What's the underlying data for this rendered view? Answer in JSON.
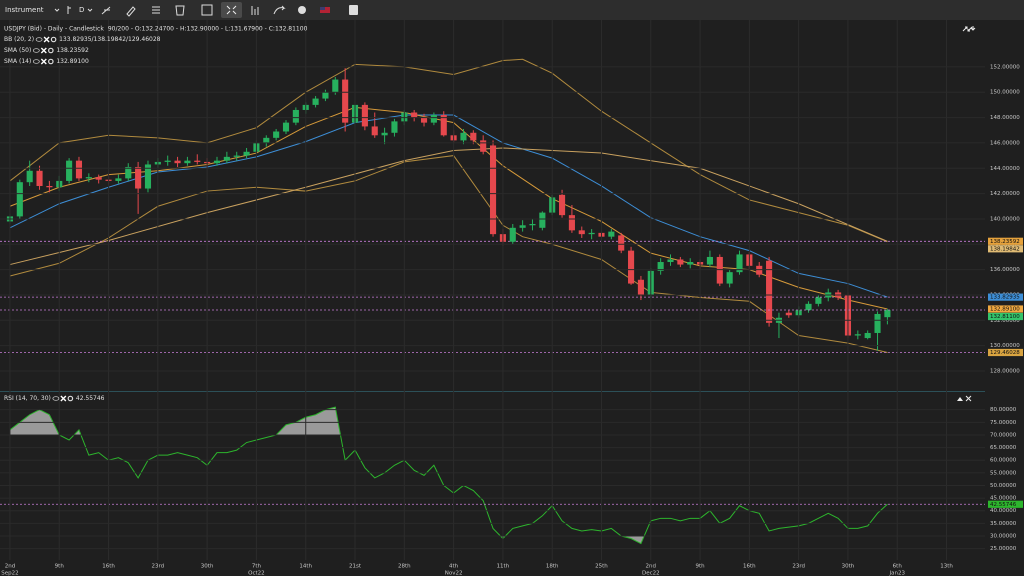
{
  "toolbar": {
    "instrument": "Instrument",
    "interval": "D"
  },
  "chart_data": {
    "type": "candlestick",
    "title": "USDJPY (Bid) - Daily - Candlestick",
    "ohlc_text": "90/200 - O:132.24700 - H:132.90000 - L:131.67900 - C:132.81100",
    "up_color": "#27b05e",
    "down_color": "#e5484d",
    "close_tag": "132.81100",
    "close_tag_color": "#33c46b",
    "candles": [
      [
        139.8,
        140.4,
        139.6,
        140.2
      ],
      [
        140.2,
        143.1,
        140.0,
        142.9
      ],
      [
        142.9,
        144.6,
        142.6,
        143.8
      ],
      [
        143.8,
        144.2,
        142.3,
        142.6
      ],
      [
        142.6,
        143.0,
        142.1,
        142.5
      ],
      [
        142.5,
        143.4,
        142.2,
        143.0
      ],
      [
        143.0,
        144.8,
        142.8,
        144.6
      ],
      [
        144.6,
        144.9,
        143.0,
        143.2
      ],
      [
        143.2,
        143.6,
        142.9,
        143.3
      ],
      [
        143.3,
        143.5,
        142.8,
        143.1
      ],
      [
        143.1,
        143.6,
        142.7,
        143.0
      ],
      [
        143.0,
        143.5,
        142.8,
        143.2
      ],
      [
        143.2,
        144.4,
        143.0,
        144.1
      ],
      [
        144.1,
        144.5,
        140.4,
        142.4
      ],
      [
        142.4,
        144.6,
        142.1,
        144.3
      ],
      [
        144.3,
        144.8,
        144.0,
        144.5
      ],
      [
        144.5,
        145.0,
        144.2,
        144.6
      ],
      [
        144.6,
        144.9,
        144.1,
        144.4
      ],
      [
        144.4,
        144.9,
        144.2,
        144.6
      ],
      [
        144.6,
        145.1,
        144.3,
        144.5
      ],
      [
        144.5,
        144.8,
        144.0,
        144.4
      ],
      [
        144.4,
        144.9,
        144.2,
        144.6
      ],
      [
        144.6,
        145.3,
        144.4,
        144.9
      ],
      [
        144.9,
        145.3,
        144.6,
        145.0
      ],
      [
        145.0,
        145.6,
        144.8,
        145.3
      ],
      [
        145.3,
        146.2,
        145.1,
        146.0
      ],
      [
        146.0,
        146.6,
        145.7,
        146.4
      ],
      [
        146.4,
        147.1,
        146.2,
        146.9
      ],
      [
        146.9,
        147.8,
        146.7,
        147.6
      ],
      [
        147.6,
        148.8,
        147.4,
        148.6
      ],
      [
        148.6,
        149.2,
        148.3,
        149.0
      ],
      [
        149.0,
        149.7,
        148.8,
        149.5
      ],
      [
        149.5,
        150.2,
        149.3,
        150.0
      ],
      [
        150.0,
        151.2,
        149.8,
        151.0
      ],
      [
        151.0,
        151.9,
        146.9,
        147.6
      ],
      [
        147.6,
        149.3,
        147.3,
        149.0
      ],
      [
        149.0,
        149.2,
        147.0,
        147.3
      ],
      [
        147.3,
        148.4,
        146.4,
        146.6
      ],
      [
        146.6,
        147.2,
        145.9,
        146.8
      ],
      [
        146.8,
        147.9,
        146.5,
        147.7
      ],
      [
        147.7,
        148.6,
        147.4,
        148.4
      ],
      [
        148.4,
        148.6,
        147.7,
        148.0
      ],
      [
        148.0,
        148.3,
        147.3,
        147.6
      ],
      [
        147.6,
        148.4,
        147.4,
        148.2
      ],
      [
        148.2,
        148.5,
        146.5,
        146.6
      ],
      [
        146.6,
        147.0,
        146.0,
        146.2
      ],
      [
        146.2,
        147.1,
        145.9,
        146.8
      ],
      [
        146.8,
        147.0,
        145.9,
        146.2
      ],
      [
        146.2,
        146.6,
        145.1,
        145.3
      ],
      [
        145.8,
        146.2,
        138.6,
        138.8
      ],
      [
        138.8,
        139.2,
        137.9,
        138.2
      ],
      [
        138.2,
        139.6,
        138.0,
        139.3
      ],
      [
        139.3,
        139.9,
        139.0,
        139.5
      ],
      [
        139.5,
        140.0,
        139.1,
        139.6
      ],
      [
        139.3,
        140.6,
        139.1,
        140.5
      ],
      [
        140.5,
        141.9,
        140.3,
        141.7
      ],
      [
        141.9,
        142.3,
        140.1,
        140.3
      ],
      [
        140.3,
        141.1,
        138.9,
        139.1
      ],
      [
        139.1,
        139.4,
        138.5,
        138.8
      ],
      [
        138.8,
        139.2,
        138.4,
        138.9
      ],
      [
        138.9,
        139.1,
        138.4,
        138.6
      ],
      [
        138.6,
        139.2,
        138.4,
        139.0
      ],
      [
        138.7,
        138.9,
        137.3,
        137.5
      ],
      [
        137.5,
        137.8,
        134.8,
        134.9
      ],
      [
        135.2,
        135.5,
        133.6,
        134.0
      ],
      [
        134.0,
        136.1,
        133.8,
        135.9
      ],
      [
        135.9,
        136.9,
        135.6,
        136.6
      ],
      [
        136.6,
        137.2,
        136.3,
        136.8
      ],
      [
        136.8,
        137.0,
        136.2,
        136.4
      ],
      [
        136.4,
        136.9,
        136.1,
        136.6
      ],
      [
        136.6,
        136.8,
        136.0,
        136.4
      ],
      [
        136.4,
        137.5,
        136.2,
        137.0
      ],
      [
        137.0,
        137.2,
        134.7,
        134.9
      ],
      [
        134.9,
        136.0,
        134.6,
        135.8
      ],
      [
        135.8,
        137.5,
        135.6,
        137.2
      ],
      [
        137.2,
        137.4,
        136.0,
        136.3
      ],
      [
        136.3,
        136.6,
        135.4,
        135.6
      ],
      [
        136.7,
        137.0,
        131.5,
        131.8
      ],
      [
        131.8,
        132.6,
        130.6,
        132.2
      ],
      [
        132.6,
        132.8,
        132.2,
        132.4
      ],
      [
        132.4,
        133.1,
        132.2,
        132.8
      ],
      [
        132.8,
        133.5,
        132.6,
        133.3
      ],
      [
        133.3,
        134.0,
        133.1,
        133.8
      ],
      [
        133.8,
        134.5,
        133.5,
        134.2
      ],
      [
        134.2,
        134.4,
        133.6,
        133.8
      ],
      [
        134.0,
        134.2,
        130.6,
        130.8
      ],
      [
        130.8,
        131.2,
        130.5,
        130.9
      ],
      [
        130.6,
        131.2,
        130.5,
        131.0
      ],
      [
        131.0,
        132.7,
        129.6,
        132.5
      ],
      [
        132.247,
        132.9,
        131.679,
        132.811
      ]
    ],
    "xlim": [
      -1.01,
      98.9
    ],
    "xticks": [
      {
        "value": 0,
        "label": "2nd"
      },
      {
        "value": 5,
        "label": "9th"
      },
      {
        "value": 10,
        "label": "16th"
      },
      {
        "value": 15,
        "label": "23rd"
      },
      {
        "value": 20,
        "label": "30th"
      },
      {
        "value": 25,
        "label": "7th"
      },
      {
        "value": 30,
        "label": "14th"
      },
      {
        "value": 35,
        "label": "21st"
      },
      {
        "value": 40,
        "label": "28th"
      },
      {
        "value": 45,
        "label": "4th"
      },
      {
        "value": 50,
        "label": "11th"
      },
      {
        "value": 55,
        "label": "18th"
      },
      {
        "value": 60,
        "label": "25th"
      },
      {
        "value": 65,
        "label": "2nd"
      },
      {
        "value": 70,
        "label": "9th"
      },
      {
        "value": 75,
        "label": "16th"
      },
      {
        "value": 80,
        "label": "23rd"
      },
      {
        "value": 85,
        "label": "30th"
      },
      {
        "value": 90,
        "label": "6th"
      },
      {
        "value": 95,
        "label": "13th"
      }
    ],
    "months": [
      {
        "value": 0,
        "label": "Sep22"
      },
      {
        "value": 25,
        "label": "Oct22"
      },
      {
        "value": 45,
        "label": "Nov22"
      },
      {
        "value": 65,
        "label": "Dec22"
      },
      {
        "value": 90,
        "label": "Jan23"
      }
    ],
    "ylim": [
      126.5,
      155.7
    ],
    "yticks": [
      {
        "value": 128,
        "label": "128.00000"
      },
      {
        "value": 130,
        "label": "130.00000"
      },
      {
        "value": 132,
        "label": "132.00000"
      },
      {
        "value": 134,
        "label": "134.00000"
      },
      {
        "value": 136,
        "label": "136.00000"
      },
      {
        "value": 138,
        "label": "138.00000"
      },
      {
        "value": 140,
        "label": "140.00000"
      },
      {
        "value": 142,
        "label": "142.00000"
      },
      {
        "value": 144,
        "label": "144.00000"
      },
      {
        "value": 146,
        "label": "146.00000"
      },
      {
        "value": 148,
        "label": "148.00000"
      },
      {
        "value": 150,
        "label": "150.00000"
      },
      {
        "value": 152,
        "label": "152.00000"
      }
    ],
    "studies": [
      {
        "name": "BB (20, 2)",
        "legend_value": "133.82935/138.19842/129.46028",
        "lines": [
          {
            "color": "#3d8ed6",
            "guide": true,
            "tag_label": "133.82935",
            "tag_color": "#3d8ed6",
            "x": [
              0,
              5,
              10,
              15,
              20,
              25,
              30,
              35,
              40,
              45,
              50,
              55,
              60,
              65,
              70,
              75,
              80,
              85,
              89
            ],
            "values": [
              139.3,
              141.2,
              142.5,
              143.7,
              144.1,
              144.9,
              146.1,
              147.6,
              148.2,
              148.2,
              146,
              144.8,
              142.6,
              140.1,
              138.6,
              137.5,
              135.7,
              134.9,
              133.82935
            ]
          },
          {
            "color": "#b08a3e",
            "guide": false,
            "tag_label": "138.19842",
            "tag_color": "#e0bb74",
            "x": [
              0,
              5,
              10,
              15,
              20,
              25,
              30,
              35,
              40,
              45,
              50,
              52,
              55,
              60,
              65,
              70,
              75,
              80,
              85,
              89
            ],
            "values": [
              143,
              146,
              146.6,
              146.4,
              146,
              147.2,
              150,
              152.2,
              152,
              151.4,
              152.5,
              152.6,
              151.5,
              148.5,
              146,
              143.5,
              141.5,
              140.5,
              139.5,
              138.19842
            ]
          },
          {
            "color": "#b08a3e",
            "guide": true,
            "tag_label": "129.46028",
            "tag_color": "#d9a441",
            "x": [
              0,
              5,
              10,
              15,
              20,
              25,
              30,
              35,
              40,
              45,
              50,
              52,
              55,
              60,
              65,
              70,
              75,
              80,
              85,
              89
            ],
            "values": [
              135.5,
              136.5,
              138.5,
              141,
              142.2,
              142.5,
              142.2,
              143,
              144.5,
              145,
              139.5,
              138.6,
              138,
              136.8,
              134.2,
              133.8,
              133.5,
              130.8,
              130.2,
              129.46028
            ]
          }
        ]
      },
      {
        "name": "SMA (50)",
        "legend_value": "138.23592",
        "lines": [
          {
            "color": "#c9a15f",
            "guide": true,
            "tag_label": "138.23592",
            "tag_color": "#e6a23c",
            "x": [
              0,
              10,
              20,
              30,
              40,
              45,
              50,
              60,
              70,
              80,
              89
            ],
            "values": [
              136.4,
              138.3,
              140.5,
              142.5,
              144.6,
              145.4,
              145.6,
              145.2,
              144,
              141.2,
              138.23592
            ]
          }
        ]
      },
      {
        "name": "SMA (14)",
        "legend_value": "132.89100",
        "lines": [
          {
            "color": "#d69a3a",
            "guide": false,
            "tag_label": "132.89100",
            "tag_color": "#f0a840",
            "x": [
              0,
              5,
              10,
              15,
              20,
              25,
              30,
              35,
              40,
              45,
              50,
              55,
              60,
              65,
              70,
              75,
              80,
              85,
              89
            ],
            "values": [
              141,
              142.5,
              143.5,
              143.8,
              144.3,
              145.2,
              147.3,
              148.8,
              148.4,
              147.6,
              144.2,
              141.6,
              139.8,
              137.3,
              136.3,
              136,
              134.6,
              133.6,
              132.891
            ]
          }
        ]
      }
    ],
    "rsi": {
      "name": "RSI (14, 70, 30)",
      "legend_value": "42.55746",
      "tag_label": "42.55746",
      "color": "#2db52d",
      "fill": "#9a9a9a",
      "level_color": "#cfcfcf",
      "levels": [
        70,
        30
      ],
      "ylim": [
        20.5,
        87.0
      ],
      "yticks": [
        {
          "value": 25,
          "label": "25.00000"
        },
        {
          "value": 30,
          "label": "30.00000"
        },
        {
          "value": 35,
          "label": "35.00000"
        },
        {
          "value": 40,
          "label": "40.00000"
        },
        {
          "value": 45,
          "label": "45.00000"
        },
        {
          "value": 50,
          "label": "50.00000"
        },
        {
          "value": 55,
          "label": "55.00000"
        },
        {
          "value": 60,
          "label": "60.00000"
        },
        {
          "value": 65,
          "label": "65.00000"
        },
        {
          "value": 70,
          "label": "70.00000"
        },
        {
          "value": 75,
          "label": "75.00000"
        },
        {
          "value": 80,
          "label": "80.00000"
        }
      ],
      "values": [
        72,
        75,
        78,
        80,
        78,
        70,
        68,
        72,
        62,
        63,
        60,
        61,
        59,
        53,
        60,
        62,
        62,
        63,
        62,
        61,
        58,
        63,
        63,
        64,
        67,
        68,
        69,
        70,
        74,
        75,
        77,
        78,
        80,
        81,
        60,
        64,
        57,
        53,
        55,
        58,
        60,
        56,
        54,
        58,
        50,
        47,
        50,
        48,
        44,
        33,
        29,
        33,
        34,
        35,
        38,
        42,
        36,
        33,
        32,
        32.5,
        32,
        33,
        30,
        29,
        27,
        36,
        37,
        37,
        36,
        37,
        37,
        40,
        35,
        37,
        42,
        40,
        39,
        32,
        33,
        33.5,
        34,
        35,
        37,
        39,
        37,
        33,
        33,
        34,
        39,
        42.55746
      ]
    }
  }
}
